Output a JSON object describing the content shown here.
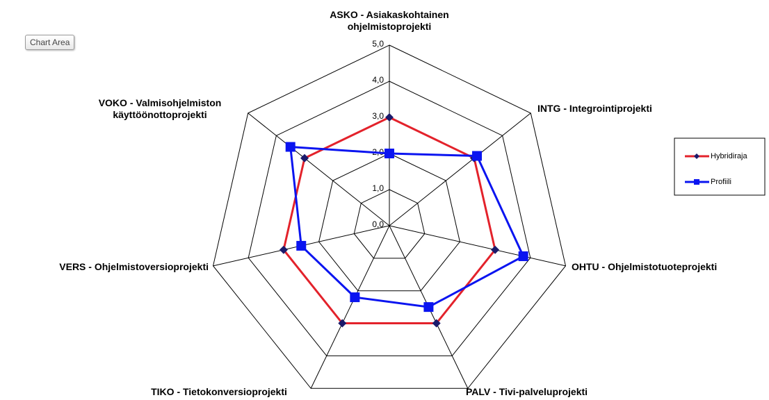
{
  "tooltip": "Chart Area",
  "chart_data": {
    "type": "radar",
    "categories": [
      "ASKO - Asiakaskohtainen ohjelmistoprojekti",
      "INTG - Integrointiprojekti",
      "OHTU - Ohjelmistotuoteprojekti",
      "PALV - Tivi-palveluprojekti",
      "TIKO - Tietokonversioprojekti",
      "VERS - Ohjelmistoversioprojekti",
      "VOKO - Valmisohjelmiston käyttöönottoprojekti"
    ],
    "series": [
      {
        "name": "Hybridiraja",
        "color": "#e3222b",
        "marker_color": "#1b1a6b",
        "marker": "diamond",
        "values": [
          3,
          3,
          3,
          3,
          3,
          3,
          3
        ]
      },
      {
        "name": "Profiili",
        "color": "#0a14f0",
        "marker_color": "#0a14f0",
        "marker": "square",
        "values": [
          2,
          3.1,
          3.8,
          2.5,
          2.2,
          2.5,
          3.5
        ]
      }
    ],
    "ylim": [
      0,
      5
    ],
    "yticks": [
      {
        "value": 0,
        "label": "0,0"
      },
      {
        "value": 1,
        "label": "1,0"
      },
      {
        "value": 2,
        "label": "2,0"
      },
      {
        "value": 3,
        "label": "3,0"
      },
      {
        "value": 4,
        "label": "4,0"
      },
      {
        "value": 5,
        "label": "5,0"
      }
    ],
    "grid": true,
    "legend": "right"
  }
}
